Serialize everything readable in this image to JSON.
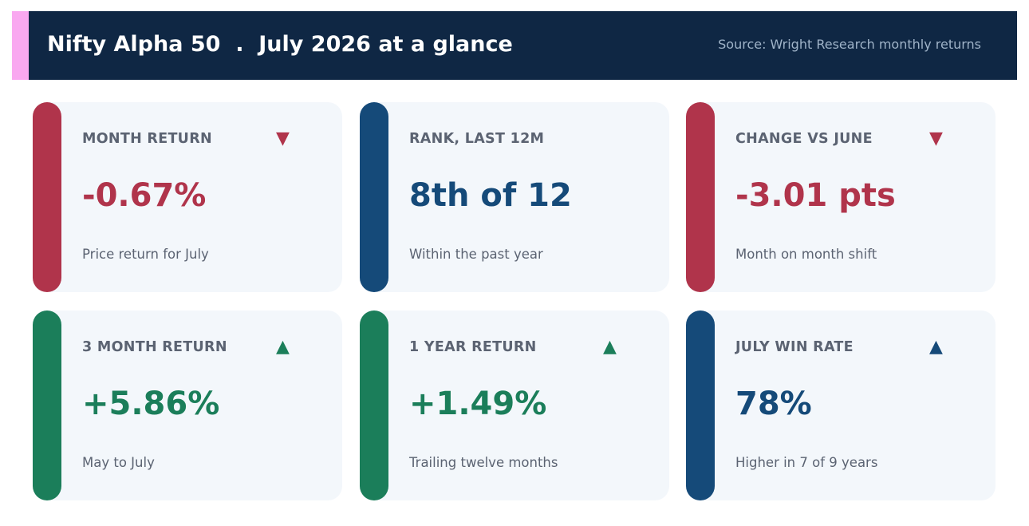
{
  "header": {
    "title": "Nifty Alpha 50  .  July 2026 at a glance",
    "source": "Source: Wright Research monthly returns",
    "accent_color": "#f9a8f0"
  },
  "colors": {
    "negative": "#b0344b",
    "positive": "#1b7e5a",
    "neutral": "#154a79"
  },
  "cards": [
    {
      "label": "MONTH RETURN",
      "value": "-0.67%",
      "sub": "Price return for July",
      "arrow": "▼",
      "arrow_icon": "down-triangle-icon",
      "tone": "negative"
    },
    {
      "label": "RANK, LAST 12M",
      "value": "8th of 12",
      "sub": "Within the past year",
      "arrow": "",
      "arrow_icon": "",
      "tone": "neutral"
    },
    {
      "label": "CHANGE VS JUNE",
      "value": "-3.01 pts",
      "sub": "Month on month shift",
      "arrow": "▼",
      "arrow_icon": "down-triangle-icon",
      "tone": "negative"
    },
    {
      "label": "3 MONTH RETURN",
      "value": "+5.86%",
      "sub": "May to July",
      "arrow": "▲",
      "arrow_icon": "up-triangle-icon",
      "tone": "positive"
    },
    {
      "label": "1 YEAR RETURN",
      "value": "+1.49%",
      "sub": "Trailing twelve months",
      "arrow": "▲",
      "arrow_icon": "up-triangle-icon",
      "tone": "positive"
    },
    {
      "label": "JULY WIN RATE",
      "value": "78%",
      "sub": "Higher in 7 of 9 years",
      "arrow": "▲",
      "arrow_icon": "up-triangle-icon",
      "tone": "neutral"
    }
  ]
}
